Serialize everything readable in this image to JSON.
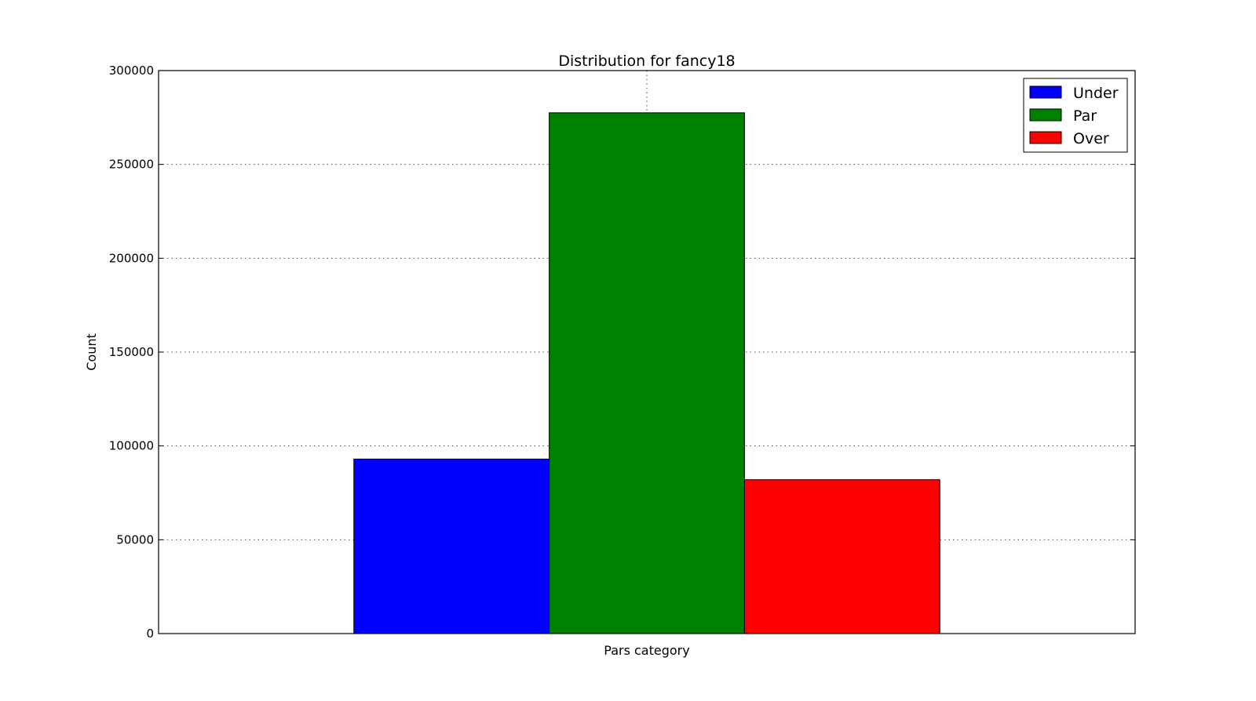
{
  "chart_data": {
    "type": "bar",
    "title": "Distribution for fancy18",
    "xlabel": "Pars category",
    "ylabel": "Count",
    "ylim": [
      0,
      300000
    ],
    "yticks": [
      0,
      50000,
      100000,
      150000,
      200000,
      250000,
      300000
    ],
    "ytick_labels": [
      "0",
      "50000",
      "100000",
      "150000",
      "200000",
      "250000",
      "300000"
    ],
    "grid": true,
    "legend_position": "top-right",
    "series": [
      {
        "name": "Under",
        "value": 93000,
        "color": "#0000ff"
      },
      {
        "name": "Par",
        "value": 277500,
        "color": "#008000"
      },
      {
        "name": "Over",
        "value": 82000,
        "color": "#ff0000"
      }
    ]
  }
}
